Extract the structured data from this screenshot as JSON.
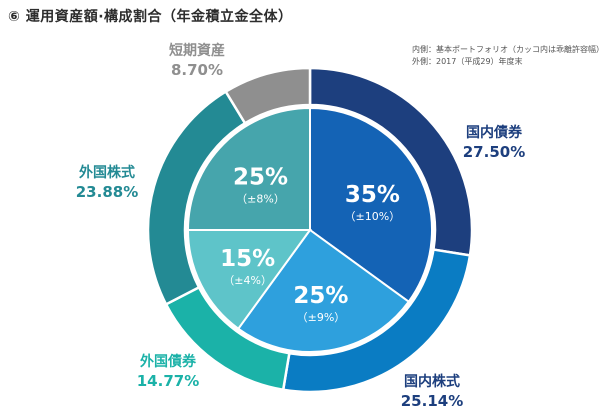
{
  "page": {
    "title": "⑥ 運用資産額·構成割合（年金積立金全体）",
    "notes": [
      "内側：基本ポートフォリオ（カッコ内は乖離許容幅）",
      "外側：2017（平成29）年度末"
    ]
  },
  "chart_data": {
    "type": "pie",
    "title": "⑥ 運用資産額·構成割合（年金積立金全体）",
    "outer": {
      "label": "外側：2017（平成29）年度末",
      "slices": [
        {
          "name": "国内債券",
          "value": 27.5,
          "label": "27.50%",
          "color": "#1d3f7e"
        },
        {
          "name": "国内株式",
          "value": 25.14,
          "label": "25.14%",
          "color": "#0a7cc3"
        },
        {
          "name": "外国債券",
          "value": 14.77,
          "label": "14.77%",
          "color": "#1bb2a8"
        },
        {
          "name": "外国株式",
          "value": 23.88,
          "label": "23.88%",
          "color": "#238a94"
        },
        {
          "name": "短期資産",
          "value": 8.7,
          "label": "8.70%",
          "color": "#8f8f8f"
        }
      ]
    },
    "inner": {
      "label": "内側：基本ポートフォリオ（カッコ内は乖離許容幅）",
      "slices": [
        {
          "name": "国内債券",
          "value": 35,
          "label": "35%",
          "range": "（±10%）",
          "color": "#1463b5"
        },
        {
          "name": "国内株式",
          "value": 25,
          "label": "25%",
          "range": "（±9%）",
          "color": "#2ea0dd"
        },
        {
          "name": "外国債券",
          "value": 15,
          "label": "15%",
          "range": "（±4%）",
          "color": "#5ec4c9"
        },
        {
          "name": "外国株式",
          "value": 25,
          "label": "25%",
          "range": "（±8%）",
          "color": "#46a5ac"
        }
      ]
    }
  }
}
